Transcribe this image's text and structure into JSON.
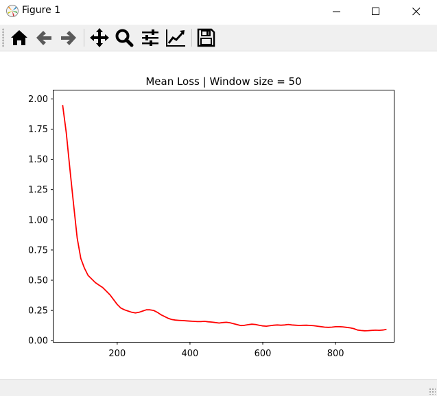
{
  "window": {
    "title": "Figure 1",
    "app_icon": "matplotlib-icon",
    "controls": [
      "minimize-icon",
      "maximize-icon",
      "close-icon"
    ]
  },
  "toolbar": {
    "buttons": [
      "home-icon",
      "back-icon",
      "forward-icon",
      "pan-icon",
      "zoom-icon",
      "subplots-icon",
      "edit-axis-icon",
      "save-icon"
    ]
  },
  "chart_data": {
    "type": "line",
    "title": "Mean Loss | Window size = 50",
    "xlabel": "",
    "ylabel": "",
    "xlim": [
      25,
      960
    ],
    "ylim": [
      -0.01,
      2.07
    ],
    "x_ticks": [
      200,
      400,
      600,
      800
    ],
    "y_ticks": [
      0.0,
      0.25,
      0.5,
      0.75,
      1.0,
      1.25,
      1.5,
      1.75,
      2.0
    ],
    "x_tick_labels": [
      "200",
      "400",
      "600",
      "800"
    ],
    "y_tick_labels": [
      "0.00",
      "0.25",
      "0.50",
      "0.75",
      "1.00",
      "1.25",
      "1.50",
      "1.75",
      "2.00"
    ],
    "grid": false,
    "series": [
      {
        "color": "#ff0000",
        "x": [
          50,
          60,
          70,
          80,
          90,
          100,
          110,
          120,
          130,
          140,
          150,
          160,
          170,
          180,
          190,
          200,
          210,
          220,
          230,
          240,
          250,
          260,
          270,
          280,
          290,
          300,
          310,
          320,
          330,
          340,
          350,
          360,
          370,
          380,
          390,
          400,
          410,
          420,
          430,
          440,
          450,
          460,
          470,
          480,
          490,
          500,
          510,
          520,
          530,
          540,
          550,
          560,
          570,
          580,
          590,
          600,
          610,
          620,
          630,
          640,
          650,
          660,
          670,
          680,
          690,
          700,
          710,
          720,
          730,
          740,
          750,
          760,
          770,
          780,
          790,
          800,
          810,
          820,
          830,
          840,
          850,
          860,
          870,
          880,
          890,
          900,
          910,
          920,
          930,
          940
        ],
        "y": [
          1.95,
          1.72,
          1.42,
          1.13,
          0.85,
          0.68,
          0.6,
          0.54,
          0.51,
          0.48,
          0.46,
          0.44,
          0.41,
          0.38,
          0.34,
          0.3,
          0.27,
          0.255,
          0.245,
          0.235,
          0.23,
          0.235,
          0.245,
          0.255,
          0.255,
          0.25,
          0.235,
          0.215,
          0.2,
          0.185,
          0.175,
          0.17,
          0.168,
          0.166,
          0.164,
          0.162,
          0.16,
          0.158,
          0.158,
          0.16,
          0.156,
          0.154,
          0.15,
          0.146,
          0.15,
          0.152,
          0.148,
          0.14,
          0.132,
          0.125,
          0.127,
          0.132,
          0.136,
          0.134,
          0.128,
          0.122,
          0.12,
          0.124,
          0.128,
          0.13,
          0.128,
          0.13,
          0.134,
          0.13,
          0.128,
          0.126,
          0.127,
          0.128,
          0.126,
          0.124,
          0.12,
          0.116,
          0.112,
          0.11,
          0.112,
          0.115,
          0.116,
          0.114,
          0.11,
          0.106,
          0.1,
          0.088,
          0.084,
          0.082,
          0.083,
          0.085,
          0.087,
          0.086,
          0.088,
          0.093
        ]
      }
    ]
  }
}
